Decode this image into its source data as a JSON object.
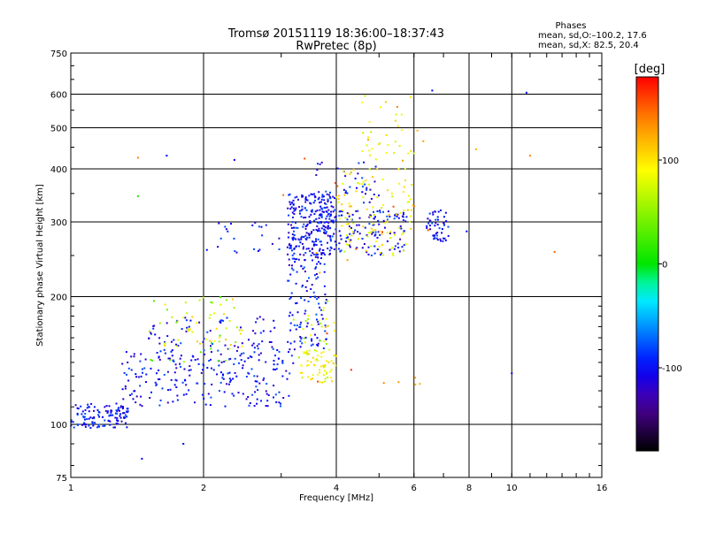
{
  "chart_data": {
    "type": "scatter",
    "title": "Tromsø 20151119 18:36:00–18:37:43",
    "subtitle": "RwPretec (8p)",
    "xlabel": "Frequency [MHz]",
    "ylabel": "Stationary phase Virtual Height [km]",
    "xscale": "log",
    "yscale": "log",
    "xlim": [
      1,
      16
    ],
    "ylim": [
      75,
      750
    ],
    "xticks": [
      1,
      2,
      4,
      6,
      8,
      10,
      16
    ],
    "yticks": [
      75,
      100,
      200,
      300,
      400,
      500,
      600,
      750
    ],
    "grid": true,
    "phases_box": {
      "title": "Phases",
      "line1": "mean, sd,O:–100.2, 17.6",
      "line2": "mean, sd,X: 82.5, 20.4"
    },
    "colorbar": {
      "label": "[deg]",
      "range": [
        -180,
        180
      ],
      "ticks": [
        100,
        0,
        -100
      ],
      "colors": [
        "#ff0000",
        "#ff8000",
        "#ffff00",
        "#00ff00",
        "#00ffff",
        "#0000ff",
        "#5000a0",
        "#000000"
      ]
    },
    "clusters": [
      {
        "phase": -100,
        "count": 120,
        "x": [
          1.0,
          1.35
        ],
        "y": [
          98,
          112
        ]
      },
      {
        "phase": -100,
        "count": 220,
        "x": [
          1.3,
          3.2
        ],
        "y": [
          110,
          150
        ]
      },
      {
        "phase": -100,
        "count": 90,
        "x": [
          1.5,
          3.0
        ],
        "y": [
          140,
          180
        ]
      },
      {
        "phase": -100,
        "count": 260,
        "x": [
          3.1,
          4.0
        ],
        "y": [
          250,
          350
        ]
      },
      {
        "phase": -100,
        "count": 120,
        "x": [
          3.1,
          3.8
        ],
        "y": [
          150,
          250
        ]
      },
      {
        "phase": -100,
        "count": 130,
        "x": [
          3.6,
          5.8
        ],
        "y": [
          250,
          320
        ]
      },
      {
        "phase": -100,
        "count": 50,
        "x": [
          6.4,
          7.2
        ],
        "y": [
          270,
          320
        ]
      },
      {
        "phase": -100,
        "count": 40,
        "x": [
          3.6,
          5.0
        ],
        "y": [
          330,
          420
        ]
      },
      {
        "phase": -100,
        "count": 25,
        "x": [
          2.0,
          3.3
        ],
        "y": [
          250,
          300
        ]
      },
      {
        "phase": 90,
        "count": 110,
        "x": [
          4.0,
          6.0
        ],
        "y": [
          250,
          400
        ]
      },
      {
        "phase": 90,
        "count": 60,
        "x": [
          3.3,
          4.0
        ],
        "y": [
          125,
          150
        ]
      },
      {
        "phase": 90,
        "count": 40,
        "x": [
          1.6,
          2.5
        ],
        "y": [
          150,
          200
        ]
      },
      {
        "phase": 90,
        "count": 30,
        "x": [
          4.5,
          6.0
        ],
        "y": [
          420,
          600
        ]
      },
      {
        "phase": 40,
        "count": 25,
        "x": [
          1.5,
          2.4
        ],
        "y": [
          140,
          200
        ]
      },
      {
        "phase": 70,
        "count": 25,
        "x": [
          3.2,
          4.0
        ],
        "y": [
          140,
          200
        ]
      },
      {
        "phase": 140,
        "count": 25,
        "x": [
          3.0,
          6.5
        ],
        "y": [
          120,
          560
        ]
      }
    ],
    "outliers": [
      {
        "x": 1.42,
        "y": 425,
        "phase": 140
      },
      {
        "x": 1.65,
        "y": 430,
        "phase": -100
      },
      {
        "x": 1.42,
        "y": 345,
        "phase": 10
      },
      {
        "x": 2.35,
        "y": 420,
        "phase": -100
      },
      {
        "x": 1.45,
        "y": 83,
        "phase": -100
      },
      {
        "x": 1.8,
        "y": 90,
        "phase": -100
      },
      {
        "x": 6.6,
        "y": 612,
        "phase": -100
      },
      {
        "x": 10.8,
        "y": 605,
        "phase": -100
      },
      {
        "x": 11.0,
        "y": 430,
        "phase": 140
      },
      {
        "x": 12.5,
        "y": 255,
        "phase": 150
      },
      {
        "x": 8.3,
        "y": 445,
        "phase": 120
      },
      {
        "x": 10.0,
        "y": 132,
        "phase": -100
      },
      {
        "x": 6.3,
        "y": 465,
        "phase": 130
      },
      {
        "x": 5.5,
        "y": 560,
        "phase": 140
      },
      {
        "x": 5.9,
        "y": 590,
        "phase": 100
      },
      {
        "x": 7.9,
        "y": 285,
        "phase": -100
      }
    ]
  }
}
